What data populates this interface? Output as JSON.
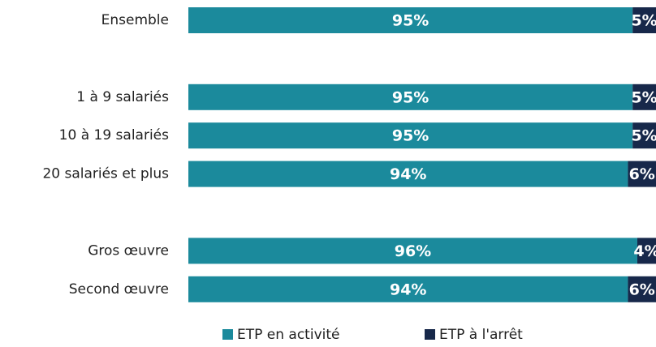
{
  "chart_data": {
    "type": "stacked-barh",
    "categories": [
      "Ensemble",
      null,
      "1 à 9 salariés",
      "10 à 19 salariés",
      "20 salariés et plus",
      null,
      "Gros œuvre",
      "Second œuvre"
    ],
    "series": [
      {
        "name": "ETP en activité",
        "color": "#1b8a9c",
        "values": [
          95,
          null,
          95,
          95,
          94,
          null,
          96,
          94
        ],
        "value_labels": [
          "95%",
          null,
          "95%",
          "95%",
          "94%",
          null,
          "96%",
          "94%"
        ]
      },
      {
        "name": "ETP à l'arrêt",
        "color": "#17284a",
        "values": [
          5,
          null,
          5,
          5,
          6,
          null,
          4,
          6
        ],
        "value_labels": [
          "5%",
          null,
          "5%",
          "5%",
          "6%",
          null,
          "4%",
          "6%"
        ]
      }
    ],
    "xlim": [
      0,
      100
    ]
  }
}
